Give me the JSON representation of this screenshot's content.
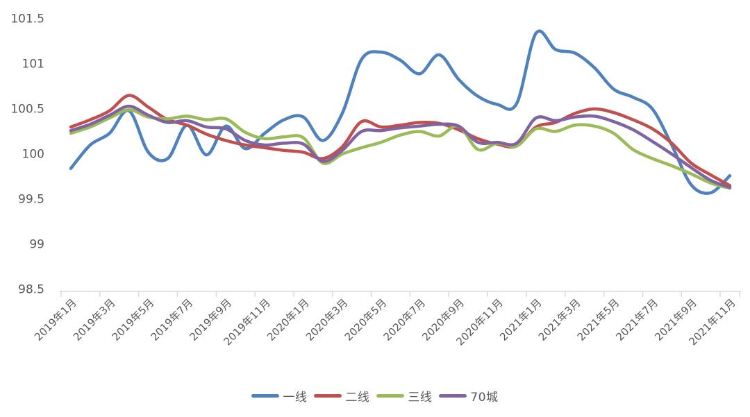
{
  "chart_data": {
    "type": "line",
    "title": "",
    "x_months": [
      "2019年1月",
      "2019年2月",
      "2019年3月",
      "2019年4月",
      "2019年5月",
      "2019年6月",
      "2019年7月",
      "2019年8月",
      "2019年9月",
      "2019年10月",
      "2019年11月",
      "2019年12月",
      "2020年1月",
      "2020年2月",
      "2020年3月",
      "2020年4月",
      "2020年5月",
      "2020年6月",
      "2020年7月",
      "2020年8月",
      "2020年9月",
      "2020年10月",
      "2020年11月",
      "2020年12月",
      "2021年1月",
      "2021年2月",
      "2021年3月",
      "2021年4月",
      "2021年5月",
      "2021年6月",
      "2021年7月",
      "2021年8月",
      "2021年9月",
      "2021年10月",
      "2021年11月"
    ],
    "x_tick_labels": [
      "2019年1月",
      "2019年3月",
      "2019年5月",
      "2019年7月",
      "2019年9月",
      "2019年11月",
      "2020年1月",
      "2020年3月",
      "2020年5月",
      "2020年7月",
      "2020年9月",
      "2020年11月",
      "2021年1月",
      "2021年3月",
      "2021年5月",
      "2021年7月",
      "2021年9月",
      "2021年11月"
    ],
    "yticks": [
      "101.5",
      "101",
      "100.5",
      "100",
      "99.5",
      "99",
      "98.5"
    ],
    "ylim": [
      98.5,
      101.5
    ],
    "grid": false,
    "legend_position": "bottom-center",
    "axis_color": "#D9D9D9",
    "text_color": "#595959",
    "series": [
      {
        "name": "一线",
        "color": "#4F81BD",
        "values": [
          99.84,
          100.1,
          100.23,
          100.48,
          100.02,
          99.95,
          100.32,
          99.99,
          100.31,
          100.06,
          100.23,
          100.38,
          100.41,
          100.15,
          100.45,
          101.05,
          101.13,
          101.04,
          100.89,
          101.1,
          100.83,
          100.64,
          100.55,
          100.56,
          101.34,
          101.16,
          101.12,
          100.96,
          100.72,
          100.63,
          100.5,
          100.1,
          99.66,
          99.57,
          99.76
        ]
      },
      {
        "name": "二线",
        "color": "#C0504D",
        "values": [
          100.3,
          100.38,
          100.48,
          100.65,
          100.52,
          100.38,
          100.32,
          100.22,
          100.15,
          100.1,
          100.07,
          100.04,
          100.02,
          99.95,
          100.08,
          100.36,
          100.3,
          100.32,
          100.35,
          100.34,
          100.27,
          100.17,
          100.11,
          100.09,
          100.3,
          100.35,
          100.45,
          100.5,
          100.46,
          100.38,
          100.28,
          100.12,
          99.9,
          99.77,
          99.65
        ]
      },
      {
        "name": "三线",
        "color": "#9BBB59",
        "values": [
          100.23,
          100.3,
          100.4,
          100.49,
          100.41,
          100.39,
          100.42,
          100.38,
          100.39,
          100.24,
          100.17,
          100.19,
          100.18,
          99.9,
          100.0,
          100.07,
          100.13,
          100.21,
          100.25,
          100.2,
          100.31,
          100.05,
          100.12,
          100.09,
          100.28,
          100.25,
          100.32,
          100.31,
          100.23,
          100.05,
          99.95,
          99.87,
          99.78,
          99.68,
          99.62
        ]
      },
      {
        "name": "70城",
        "color": "#8064A2",
        "values": [
          100.26,
          100.33,
          100.43,
          100.53,
          100.43,
          100.35,
          100.37,
          100.3,
          100.28,
          100.15,
          100.1,
          100.12,
          100.11,
          99.92,
          100.04,
          100.25,
          100.26,
          100.29,
          100.31,
          100.33,
          100.31,
          100.13,
          100.13,
          100.12,
          100.4,
          100.37,
          100.41,
          100.42,
          100.36,
          100.27,
          100.14,
          100.0,
          99.85,
          99.71,
          99.63
        ]
      }
    ]
  }
}
